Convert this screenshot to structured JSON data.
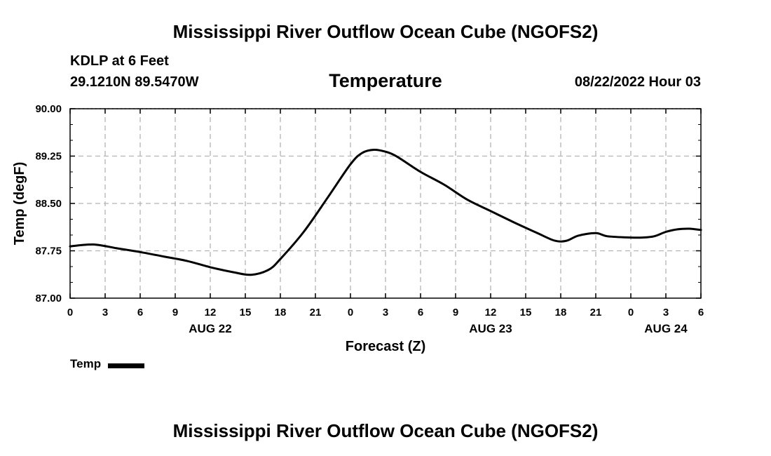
{
  "header": {
    "title": "Mississippi River Outflow Ocean Cube (NGOFS2)",
    "station": "KDLP at 6 Feet",
    "coordinates": "29.1210N  89.5470W",
    "subtitle": "Temperature",
    "datetime": "08/22/2022 Hour 03"
  },
  "footer": {
    "title": "Mississippi River Outflow Ocean Cube (NGOFS2)"
  },
  "legend": {
    "label": "Temp"
  },
  "colors": {
    "line": "#000000",
    "grid": "#b4b4b4"
  },
  "chart_data": {
    "type": "line",
    "title": "Temperature",
    "xlabel": "Forecast (Z)",
    "ylabel": "Temp (degF)",
    "xlim": [
      0,
      54
    ],
    "ylim": [
      87.0,
      90.0
    ],
    "x_ticks": [
      0,
      3,
      6,
      9,
      12,
      15,
      18,
      21,
      24,
      27,
      30,
      33,
      36,
      39,
      42,
      45,
      48,
      51,
      54
    ],
    "x_tick_labels": [
      "0",
      "3",
      "6",
      "9",
      "12",
      "15",
      "18",
      "21",
      "0",
      "3",
      "6",
      "9",
      "12",
      "15",
      "18",
      "21",
      "0",
      "3",
      "6"
    ],
    "y_ticks": [
      87.0,
      87.75,
      88.5,
      89.25,
      90.0
    ],
    "y_tick_labels": [
      "87.00",
      "87.75",
      "88.50",
      "89.25",
      "90.00"
    ],
    "date_labels": [
      {
        "x": 12,
        "label": "AUG 22"
      },
      {
        "x": 36,
        "label": "AUG 23"
      },
      {
        "x": 51,
        "label": "AUG 24"
      }
    ],
    "grid": true,
    "series": [
      {
        "name": "Temp",
        "x": [
          0,
          2,
          4,
          6,
          8,
          10,
          12,
          14,
          15.5,
          17,
          18,
          20,
          22,
          24,
          25,
          26,
          27,
          28,
          30,
          32,
          34,
          36,
          38,
          40,
          41.5,
          42.5,
          43.5,
          45,
          46,
          48,
          49,
          50,
          51,
          52,
          53,
          54
        ],
        "values": [
          87.82,
          87.85,
          87.79,
          87.73,
          87.66,
          87.59,
          87.49,
          87.41,
          87.37,
          87.45,
          87.62,
          88.05,
          88.58,
          89.12,
          89.3,
          89.35,
          89.32,
          89.24,
          89.0,
          88.8,
          88.56,
          88.38,
          88.2,
          88.03,
          87.91,
          87.91,
          87.99,
          88.03,
          87.98,
          87.96,
          87.96,
          87.98,
          88.05,
          88.09,
          88.1,
          88.08
        ]
      }
    ]
  }
}
